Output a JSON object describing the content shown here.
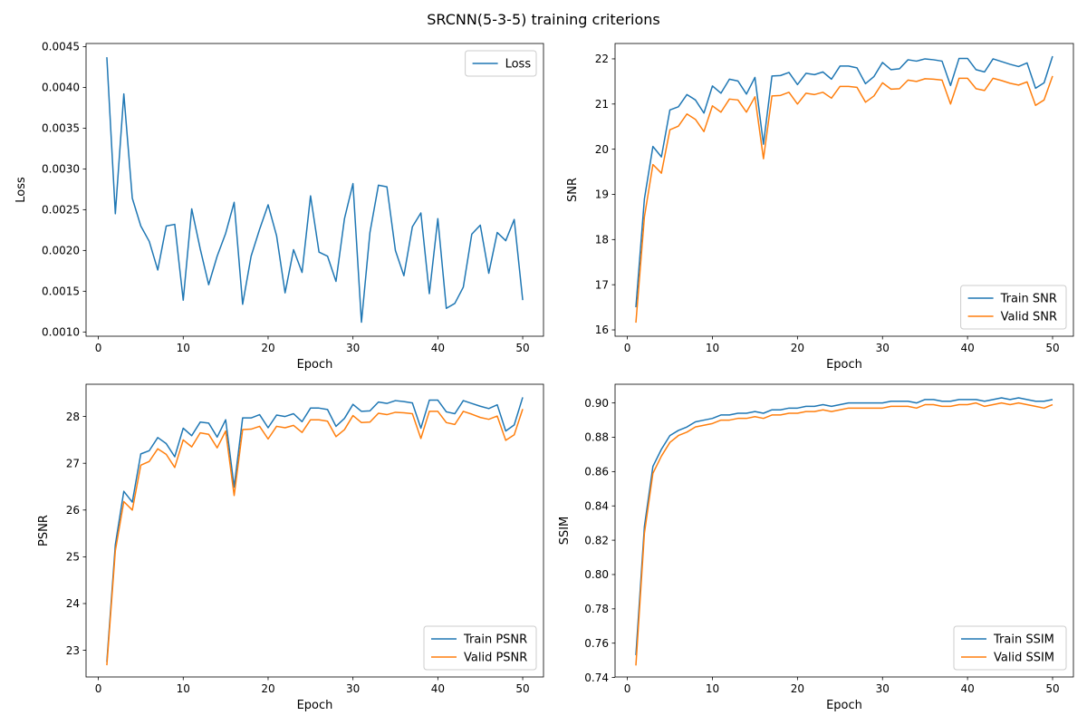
{
  "figure": {
    "title": "SRCNN(5-3-5) training criterions"
  },
  "colors": {
    "train": "#1f77b4",
    "valid": "#ff7f0e",
    "axis": "#000000"
  },
  "chart_data": [
    {
      "type": "line",
      "xlabel": "Epoch",
      "ylabel": "Loss",
      "xlim": [
        -1.45,
        52.45
      ],
      "ylim": [
        0.000948,
        0.004538
      ],
      "xticks": [
        0,
        10,
        20,
        30,
        40,
        50
      ],
      "yticks": [
        0.001,
        0.0015,
        0.002,
        0.0025,
        0.003,
        0.0035,
        0.004,
        0.0045
      ],
      "ytick_labels": [
        "0.0010",
        "0.0015",
        "0.0020",
        "0.0025",
        "0.0030",
        "0.0035",
        "0.0040",
        "0.0045"
      ],
      "legend_loc": "upper right",
      "x": [
        1,
        2,
        3,
        4,
        5,
        6,
        7,
        8,
        9,
        10,
        11,
        12,
        13,
        14,
        15,
        16,
        17,
        18,
        19,
        20,
        21,
        22,
        23,
        24,
        25,
        26,
        27,
        28,
        29,
        30,
        31,
        32,
        33,
        34,
        35,
        36,
        37,
        38,
        39,
        40,
        41,
        42,
        43,
        44,
        45,
        46,
        47,
        48,
        49,
        50
      ],
      "series": [
        {
          "name": "Loss",
          "color": "#1f77b4",
          "values": [
            0.00437,
            0.00245,
            0.00392,
            0.00264,
            0.0023,
            0.00211,
            0.00176,
            0.0023,
            0.00232,
            0.00139,
            0.00251,
            0.00202,
            0.00158,
            0.00193,
            0.00221,
            0.00259,
            0.00134,
            0.00193,
            0.00226,
            0.00256,
            0.00218,
            0.00148,
            0.00201,
            0.00173,
            0.00267,
            0.00198,
            0.00193,
            0.00162,
            0.00239,
            0.00282,
            0.00112,
            0.00222,
            0.0028,
            0.00278,
            0.002,
            0.00169,
            0.00229,
            0.00246,
            0.00147,
            0.00239,
            0.00129,
            0.00135,
            0.00155,
            0.0022,
            0.00231,
            0.00172,
            0.00222,
            0.00212,
            0.00238,
            0.00139
          ]
        }
      ]
    },
    {
      "type": "line",
      "xlabel": "Epoch",
      "ylabel": "SNR",
      "xlim": [
        -1.45,
        52.45
      ],
      "ylim": [
        15.86,
        22.34
      ],
      "xticks": [
        0,
        10,
        20,
        30,
        40,
        50
      ],
      "yticks": [
        16,
        17,
        18,
        19,
        20,
        21,
        22
      ],
      "ytick_labels": [
        "16",
        "17",
        "18",
        "19",
        "20",
        "21",
        "22"
      ],
      "legend_loc": "lower right",
      "x": [
        1,
        2,
        3,
        4,
        5,
        6,
        7,
        8,
        9,
        10,
        11,
        12,
        13,
        14,
        15,
        16,
        17,
        18,
        19,
        20,
        21,
        22,
        23,
        24,
        25,
        26,
        27,
        28,
        29,
        30,
        31,
        32,
        33,
        34,
        35,
        36,
        37,
        38,
        39,
        40,
        41,
        42,
        43,
        44,
        45,
        46,
        47,
        48,
        49,
        50
      ],
      "series": [
        {
          "name": "Train SNR",
          "color": "#1f77b4",
          "values": [
            16.5,
            18.9,
            20.06,
            19.83,
            20.87,
            20.94,
            21.21,
            21.09,
            20.8,
            21.4,
            21.24,
            21.55,
            21.51,
            21.22,
            21.59,
            20.11,
            21.62,
            21.63,
            21.7,
            21.43,
            21.68,
            21.65,
            21.71,
            21.55,
            21.84,
            21.84,
            21.8,
            21.45,
            21.61,
            21.92,
            21.76,
            21.78,
            21.98,
            21.95,
            22.0,
            21.98,
            21.95,
            21.41,
            22.01,
            22.01,
            21.76,
            21.71,
            22.0,
            21.94,
            21.88,
            21.83,
            21.91,
            21.35,
            21.47,
            22.06
          ]
        },
        {
          "name": "Valid SNR",
          "color": "#ff7f0e",
          "values": [
            16.16,
            18.5,
            19.66,
            19.47,
            20.43,
            20.51,
            20.78,
            20.66,
            20.39,
            20.96,
            20.82,
            21.11,
            21.09,
            20.82,
            21.16,
            19.79,
            21.18,
            21.19,
            21.26,
            21.0,
            21.24,
            21.21,
            21.26,
            21.13,
            21.39,
            21.39,
            21.37,
            21.04,
            21.18,
            21.47,
            21.33,
            21.34,
            21.53,
            21.5,
            21.56,
            21.55,
            21.53,
            21.0,
            21.57,
            21.57,
            21.34,
            21.3,
            21.57,
            21.52,
            21.46,
            21.42,
            21.49,
            20.97,
            21.09,
            21.62
          ]
        }
      ]
    },
    {
      "type": "line",
      "xlabel": "Epoch",
      "ylabel": "PSNR",
      "xlim": [
        -1.45,
        52.45
      ],
      "ylim": [
        22.43,
        28.69
      ],
      "xticks": [
        0,
        10,
        20,
        30,
        40,
        50
      ],
      "yticks": [
        23,
        24,
        25,
        26,
        27,
        28
      ],
      "ytick_labels": [
        "23",
        "24",
        "25",
        "26",
        "27",
        "28"
      ],
      "legend_loc": "lower right",
      "x": [
        1,
        2,
        3,
        4,
        5,
        6,
        7,
        8,
        9,
        10,
        11,
        12,
        13,
        14,
        15,
        16,
        17,
        18,
        19,
        20,
        21,
        22,
        23,
        24,
        25,
        26,
        27,
        28,
        29,
        30,
        31,
        32,
        33,
        34,
        35,
        36,
        37,
        38,
        39,
        40,
        41,
        42,
        43,
        44,
        45,
        46,
        47,
        48,
        49,
        50
      ],
      "series": [
        {
          "name": "Train PSNR",
          "color": "#1f77b4",
          "values": [
            22.75,
            25.26,
            26.4,
            26.17,
            27.2,
            27.27,
            27.55,
            27.42,
            27.14,
            27.75,
            27.59,
            27.88,
            27.86,
            27.56,
            27.93,
            26.49,
            27.97,
            27.97,
            28.04,
            27.76,
            28.03,
            28.0,
            28.06,
            27.89,
            28.18,
            28.18,
            28.15,
            27.79,
            27.96,
            28.26,
            28.11,
            28.12,
            28.31,
            28.28,
            28.34,
            28.32,
            28.29,
            27.75,
            28.35,
            28.35,
            28.1,
            28.06,
            28.34,
            28.28,
            28.22,
            28.17,
            28.25,
            27.69,
            27.82,
            28.41
          ]
        },
        {
          "name": "Valid PSNR",
          "color": "#ff7f0e",
          "values": [
            22.68,
            25.13,
            26.18,
            26.0,
            26.96,
            27.04,
            27.31,
            27.19,
            26.91,
            27.5,
            27.35,
            27.65,
            27.62,
            27.33,
            27.69,
            26.31,
            27.72,
            27.73,
            27.79,
            27.52,
            27.79,
            27.76,
            27.81,
            27.66,
            27.93,
            27.93,
            27.9,
            27.57,
            27.72,
            28.02,
            27.87,
            27.88,
            28.07,
            28.04,
            28.09,
            28.08,
            28.06,
            27.53,
            28.11,
            28.11,
            27.87,
            27.83,
            28.11,
            28.05,
            27.98,
            27.94,
            28.01,
            27.49,
            27.61,
            28.16
          ]
        }
      ]
    },
    {
      "type": "line",
      "xlabel": "Epoch",
      "ylabel": "SSIM",
      "xlim": [
        -1.45,
        52.45
      ],
      "ylim": [
        0.7403,
        0.9109
      ],
      "xticks": [
        0,
        10,
        20,
        30,
        40,
        50
      ],
      "yticks": [
        0.74,
        0.76,
        0.78,
        0.8,
        0.82,
        0.84,
        0.86,
        0.88,
        0.9
      ],
      "ytick_labels": [
        "0.74",
        "0.76",
        "0.78",
        "0.80",
        "0.82",
        "0.84",
        "0.86",
        "0.88",
        "0.90"
      ],
      "legend_loc": "lower right",
      "x": [
        1,
        2,
        3,
        4,
        5,
        6,
        7,
        8,
        9,
        10,
        11,
        12,
        13,
        14,
        15,
        16,
        17,
        18,
        19,
        20,
        21,
        22,
        23,
        24,
        25,
        26,
        27,
        28,
        29,
        30,
        31,
        32,
        33,
        34,
        35,
        36,
        37,
        38,
        39,
        40,
        41,
        42,
        43,
        44,
        45,
        46,
        47,
        48,
        49,
        50
      ],
      "series": [
        {
          "name": "Train SSIM",
          "color": "#1f77b4",
          "values": [
            0.753,
            0.828,
            0.863,
            0.873,
            0.881,
            0.884,
            0.886,
            0.889,
            0.89,
            0.891,
            0.893,
            0.893,
            0.894,
            0.894,
            0.895,
            0.894,
            0.896,
            0.896,
            0.897,
            0.897,
            0.898,
            0.898,
            0.899,
            0.898,
            0.899,
            0.9,
            0.9,
            0.9,
            0.9,
            0.9,
            0.901,
            0.901,
            0.901,
            0.9,
            0.902,
            0.902,
            0.901,
            0.901,
            0.902,
            0.902,
            0.902,
            0.901,
            0.902,
            0.903,
            0.902,
            0.903,
            0.902,
            0.901,
            0.901,
            0.902
          ]
        },
        {
          "name": "Valid SSIM",
          "color": "#ff7f0e",
          "values": [
            0.747,
            0.824,
            0.859,
            0.869,
            0.877,
            0.881,
            0.883,
            0.886,
            0.887,
            0.888,
            0.89,
            0.89,
            0.891,
            0.891,
            0.892,
            0.891,
            0.893,
            0.893,
            0.894,
            0.894,
            0.895,
            0.895,
            0.896,
            0.895,
            0.896,
            0.897,
            0.897,
            0.897,
            0.897,
            0.897,
            0.898,
            0.898,
            0.898,
            0.897,
            0.899,
            0.899,
            0.898,
            0.898,
            0.899,
            0.899,
            0.9,
            0.898,
            0.899,
            0.9,
            0.899,
            0.9,
            0.899,
            0.898,
            0.897,
            0.899
          ]
        }
      ]
    }
  ]
}
